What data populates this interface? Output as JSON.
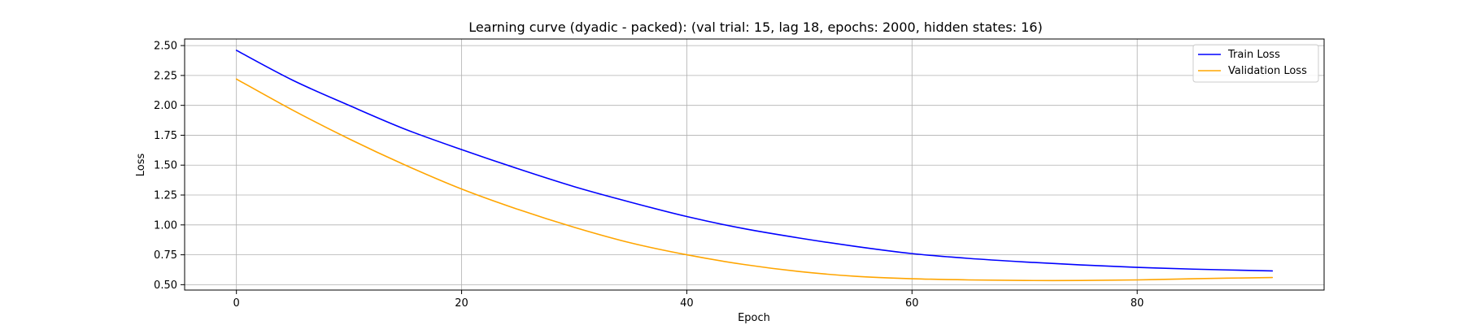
{
  "chart_data": {
    "type": "line",
    "title": "Learning curve (dyadic - packed): (val trial: 15, lag 18, epochs: 2000, hidden states: 16)",
    "xlabel": "Epoch",
    "ylabel": "Loss",
    "xlim": [
      -4.6,
      96.6
    ],
    "ylim": [
      0.455,
      2.555
    ],
    "xticks": [
      0,
      20,
      40,
      60,
      80
    ],
    "xtick_labels": [
      "0",
      "20",
      "40",
      "60",
      "80"
    ],
    "yticks": [
      0.5,
      0.75,
      1.0,
      1.25,
      1.5,
      1.75,
      2.0,
      2.25,
      2.5
    ],
    "ytick_labels": [
      "0.50",
      "0.75",
      "1.00",
      "1.25",
      "1.50",
      "1.75",
      "2.00",
      "2.25",
      "2.50"
    ],
    "grid": true,
    "legend_position": "top-right",
    "x": [
      0,
      5,
      10,
      15,
      20,
      25,
      30,
      35,
      40,
      45,
      50,
      55,
      60,
      65,
      70,
      75,
      80,
      85,
      92
    ],
    "series": [
      {
        "name": "Train Loss",
        "color": "#0000ff",
        "values": [
          2.46,
          2.21,
          2.0,
          1.8,
          1.63,
          1.47,
          1.32,
          1.19,
          1.07,
          0.97,
          0.89,
          0.82,
          0.76,
          0.72,
          0.69,
          0.665,
          0.645,
          0.63,
          0.615
        ]
      },
      {
        "name": "Validation Loss",
        "color": "#ffa500",
        "values": [
          2.22,
          1.96,
          1.72,
          1.5,
          1.3,
          1.13,
          0.98,
          0.85,
          0.75,
          0.67,
          0.61,
          0.57,
          0.55,
          0.54,
          0.535,
          0.535,
          0.54,
          0.55,
          0.56
        ]
      }
    ]
  }
}
